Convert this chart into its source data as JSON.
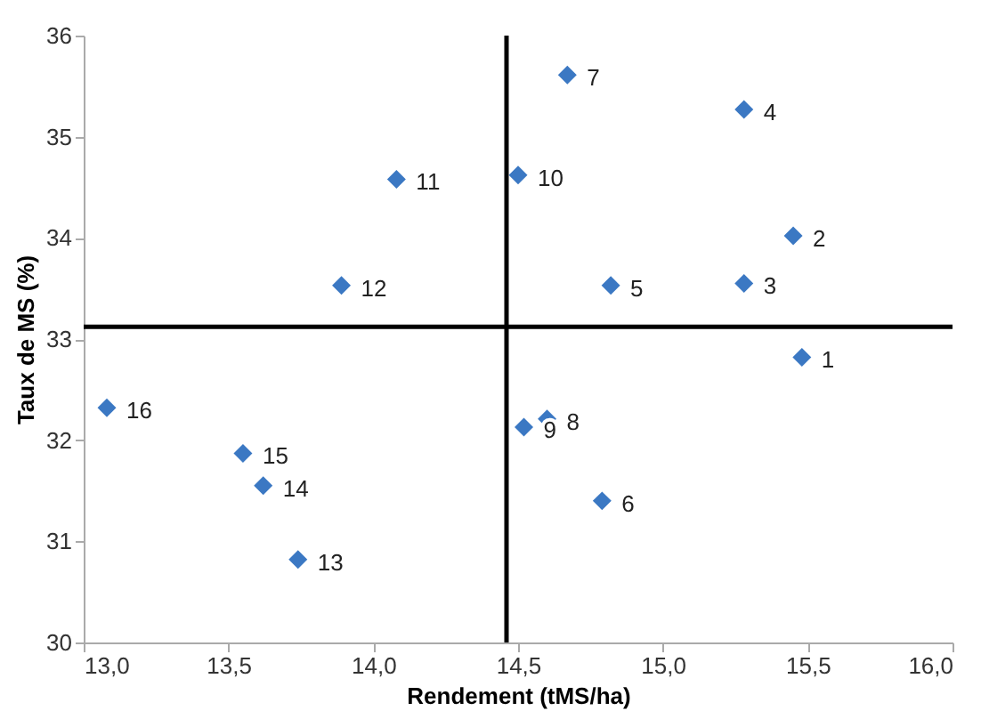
{
  "chart_data": {
    "type": "scatter",
    "xlabel": "Rendement (tMS/ha)",
    "ylabel": "Taux de MS (%)",
    "x": [
      15.48,
      15.45,
      15.28,
      15.28,
      14.82,
      14.79,
      14.67,
      14.6,
      14.52,
      14.5,
      14.08,
      13.89,
      13.74,
      13.62,
      13.55,
      13.08
    ],
    "series": [
      {
        "color": "#3b78c3",
        "values": [
          32.82,
          34.02,
          33.55,
          35.27,
          33.53,
          31.4,
          35.61,
          32.21,
          32.13,
          34.62,
          34.58,
          33.53,
          30.82,
          31.55,
          31.87,
          32.32
        ]
      }
    ],
    "annotations": [
      {
        "text": "1",
        "x": 15.48,
        "y": 32.82
      },
      {
        "text": "2",
        "x": 15.45,
        "y": 34.02
      },
      {
        "text": "3",
        "x": 15.28,
        "y": 33.55
      },
      {
        "text": "4",
        "x": 15.28,
        "y": 35.27
      },
      {
        "text": "5",
        "x": 14.82,
        "y": 33.53
      },
      {
        "text": "6",
        "x": 14.79,
        "y": 31.4
      },
      {
        "text": "7",
        "x": 14.67,
        "y": 35.61
      },
      {
        "text": "8",
        "x": 14.6,
        "y": 32.21
      },
      {
        "text": "9",
        "x": 14.52,
        "y": 32.13
      },
      {
        "text": "10",
        "x": 14.5,
        "y": 34.62
      },
      {
        "text": "11",
        "x": 14.08,
        "y": 34.58
      },
      {
        "text": "12",
        "x": 13.89,
        "y": 33.53
      },
      {
        "text": "13",
        "x": 13.74,
        "y": 30.82
      },
      {
        "text": "14",
        "x": 13.62,
        "y": 31.55
      },
      {
        "text": "15",
        "x": 13.55,
        "y": 31.87
      },
      {
        "text": "16",
        "x": 13.08,
        "y": 32.32
      }
    ],
    "ref_lines": [
      {
        "axis": "x",
        "value": 14.46,
        "color": "#000000"
      },
      {
        "axis": "y",
        "value": 33.12,
        "color": "#000000"
      }
    ],
    "xlim": [
      13.0,
      16.0
    ],
    "xticks": [
      {
        "value": 13.0,
        "label": "13,0"
      },
      {
        "value": 13.5,
        "label": "13,5"
      },
      {
        "value": 14.0,
        "label": "14,0"
      },
      {
        "value": 14.5,
        "label": "14,5"
      },
      {
        "value": 15.0,
        "label": "15,0"
      },
      {
        "value": 15.5,
        "label": "15,5"
      },
      {
        "value": 16.0,
        "label": "16,0"
      }
    ],
    "ylim": [
      30,
      36
    ],
    "yticks": [
      30,
      31,
      32,
      33,
      34,
      35,
      36
    ],
    "marker": "diamond",
    "grid": false
  }
}
